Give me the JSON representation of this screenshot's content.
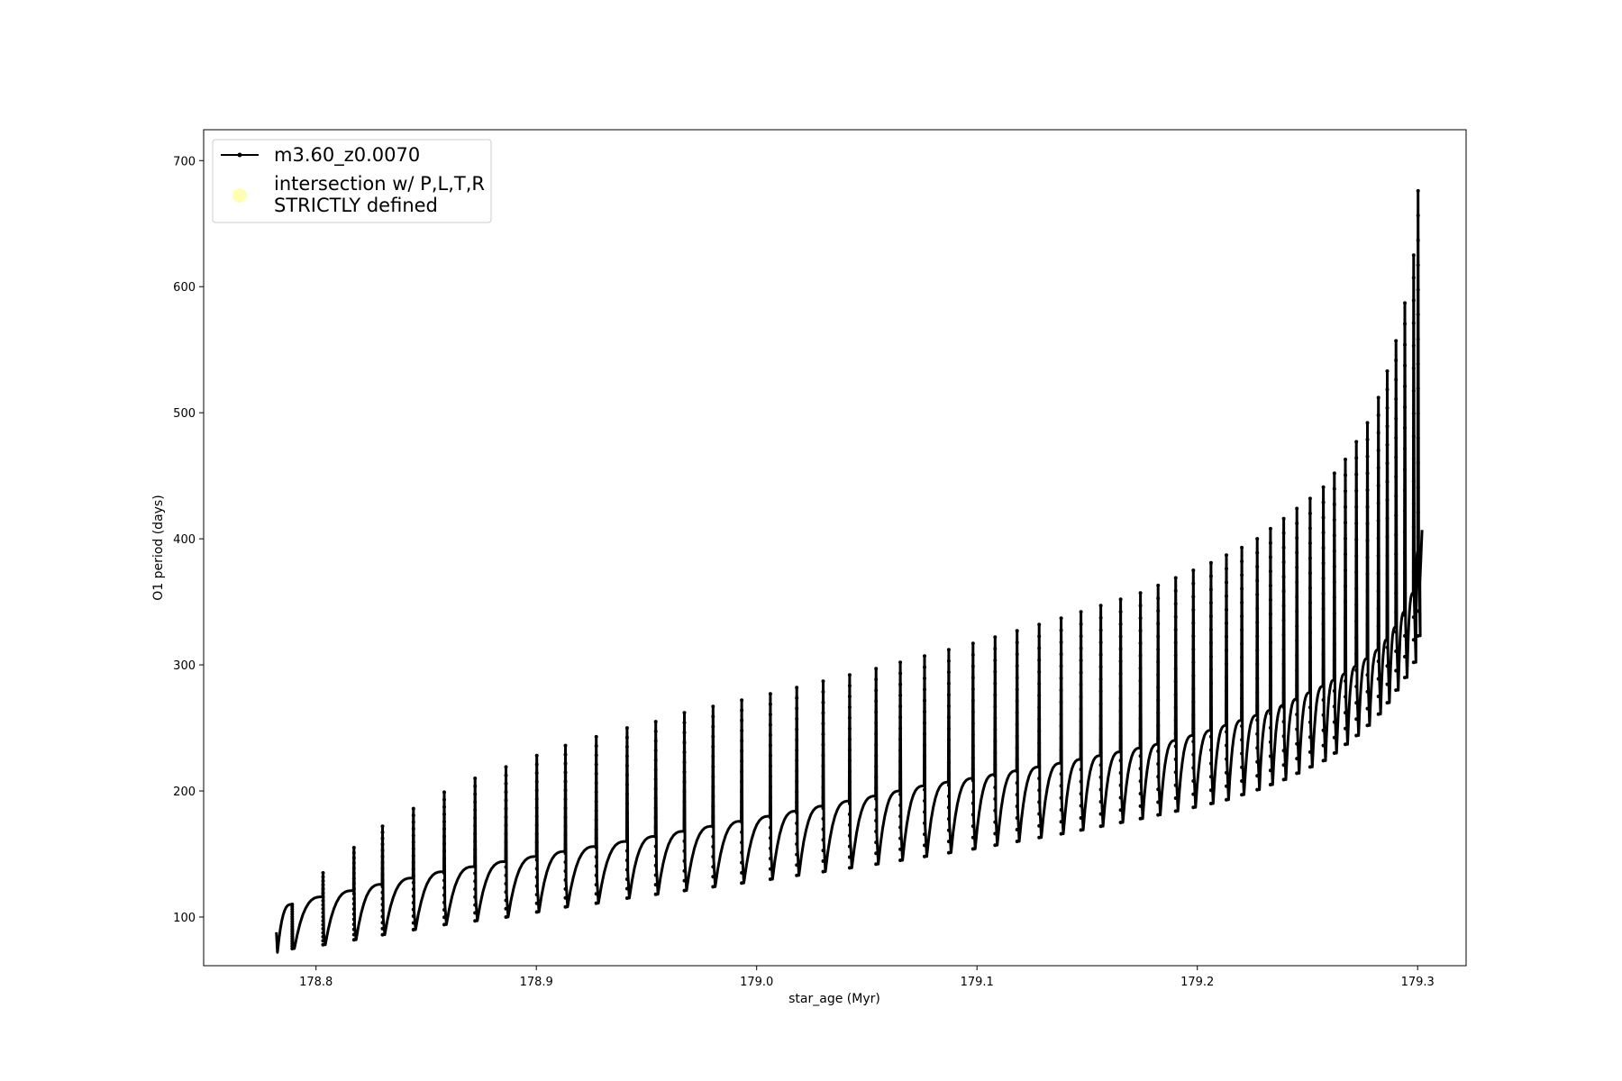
{
  "chart_data": {
    "type": "line",
    "xlabel": "star_age (Myr)",
    "ylabel": "O1 period (days)",
    "xlim": [
      178.749,
      179.322
    ],
    "ylim": [
      61.4,
      724.5
    ],
    "xticks": [
      178.8,
      178.9,
      179.0,
      179.1,
      179.2,
      179.3
    ],
    "xtick_labels": [
      "178.8",
      "178.9",
      "179.0",
      "179.1",
      "179.2",
      "179.3"
    ],
    "yticks": [
      100,
      200,
      300,
      400,
      500,
      600,
      700
    ],
    "ytick_labels": [
      "100",
      "200",
      "300",
      "400",
      "500",
      "600",
      "700"
    ],
    "grid": false,
    "legend_position": "upper-left",
    "legend": [
      {
        "label": "m3.60_z0.0070",
        "marker": "line-with-dots",
        "color": "#000000"
      },
      {
        "label": "intersection w/ P,L,T,R STRICTLY defined",
        "marker": "circle",
        "color": "#ffff99"
      }
    ],
    "series": [
      {
        "name": "m3.60_z0.0070",
        "color": "#000000",
        "style": "thick line with small dot markers; repeated saw-tooth pulses",
        "x_start": 178.782,
        "x_end": 179.302,
        "pulse_ages": [
          178.789,
          178.803,
          178.817,
          178.83,
          178.844,
          178.858,
          178.872,
          178.886,
          178.9,
          178.913,
          178.927,
          178.941,
          178.954,
          178.967,
          178.98,
          178.993,
          179.006,
          179.018,
          179.03,
          179.042,
          179.054,
          179.065,
          179.076,
          179.087,
          179.098,
          179.108,
          179.118,
          179.128,
          179.138,
          179.147,
          179.156,
          179.165,
          179.174,
          179.182,
          179.19,
          179.198,
          179.206,
          179.213,
          179.22,
          179.227,
          179.233,
          179.239,
          179.245,
          179.251,
          179.257,
          179.262,
          179.267,
          179.272,
          179.277,
          179.282,
          179.286,
          179.29,
          179.294,
          179.298,
          179.3
        ],
        "pulse_peaks": [
          110,
          135,
          155,
          172,
          186,
          199,
          210,
          219,
          228,
          236,
          243,
          250,
          255,
          262,
          267,
          272,
          277,
          282,
          287,
          292,
          297,
          302,
          307,
          312,
          317,
          322,
          327,
          332,
          337,
          342,
          347,
          352,
          357,
          363,
          369,
          375,
          381,
          387,
          393,
          400,
          408,
          416,
          424,
          432,
          441,
          452,
          463,
          477,
          492,
          512,
          533,
          557,
          587,
          625,
          676
        ],
        "pulse_minima": [
          75,
          78,
          82,
          86,
          90,
          94,
          97,
          100,
          104,
          108,
          111,
          115,
          118,
          121,
          124,
          127,
          130,
          133,
          136,
          139,
          142,
          145,
          148,
          151,
          154,
          157,
          160,
          163,
          166,
          169,
          172,
          175,
          178,
          181,
          184,
          187,
          190,
          193,
          197,
          201,
          205,
          209,
          214,
          219,
          224,
          230,
          237,
          244,
          252,
          261,
          270,
          280,
          290,
          302,
          323
        ],
        "envelope_before_pulse": [
          110,
          116,
          121,
          126,
          131,
          136,
          140,
          144,
          148,
          152,
          156,
          160,
          164,
          168,
          172,
          176,
          180,
          184,
          188,
          192,
          196,
          200,
          204,
          207,
          210,
          213,
          216,
          219,
          222,
          225,
          228,
          231,
          234,
          237,
          240,
          244,
          248,
          252,
          256,
          260,
          264,
          268,
          273,
          278,
          283,
          288,
          293,
          299,
          305,
          312,
          320,
          330,
          342,
          357,
          390
        ],
        "final_point": {
          "x": 179.302,
          "y": 407
        }
      }
    ]
  }
}
